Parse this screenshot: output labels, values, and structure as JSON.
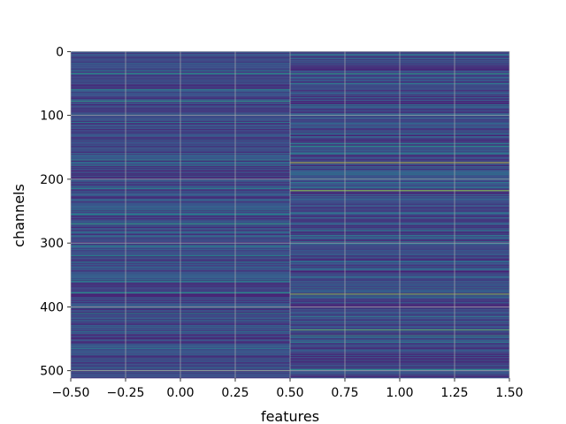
{
  "chart_data": {
    "type": "heatmap",
    "title": "",
    "xlabel": "features",
    "ylabel": "channels",
    "xlim": [
      -0.5,
      1.5
    ],
    "ylim": [
      512,
      0
    ],
    "x_ticks": [
      "−0.50",
      "−0.25",
      "0.00",
      "0.25",
      "0.50",
      "0.75",
      "1.00",
      "1.25",
      "1.50"
    ],
    "x_tick_values": [
      -0.5,
      -0.25,
      0.0,
      0.25,
      0.5,
      0.75,
      1.0,
      1.25,
      1.5
    ],
    "y_ticks": [
      "0",
      "100",
      "200",
      "300",
      "400",
      "500"
    ],
    "y_tick_values": [
      0,
      100,
      200,
      300,
      400,
      500
    ],
    "grid": true,
    "colormap": "viridis",
    "columns": [
      0,
      1
    ],
    "rows": 512,
    "value_range": [
      0,
      1
    ],
    "highlighted_rows": {
      "column_0": [
        {
          "row": 35,
          "value": 0.55
        },
        {
          "row": 60,
          "value": 0.5
        },
        {
          "row": 78,
          "value": 0.6
        },
        {
          "row": 170,
          "value": 0.5
        },
        {
          "row": 215,
          "value": 0.5
        },
        {
          "row": 250,
          "value": 0.45
        },
        {
          "row": 270,
          "value": 0.6
        },
        {
          "row": 290,
          "value": 0.45
        },
        {
          "row": 320,
          "value": 0.5
        },
        {
          "row": 360,
          "value": 0.45
        },
        {
          "row": 378,
          "value": 0.55
        },
        {
          "row": 410,
          "value": 0.5
        },
        {
          "row": 500,
          "value": 0.7
        }
      ],
      "column_1": [
        {
          "row": 5,
          "value": 0.45
        },
        {
          "row": 35,
          "value": 0.6
        },
        {
          "row": 148,
          "value": 0.55
        },
        {
          "row": 160,
          "value": 0.5
        },
        {
          "row": 174,
          "value": 0.95
        },
        {
          "row": 205,
          "value": 0.45
        },
        {
          "row": 218,
          "value": 0.9
        },
        {
          "row": 280,
          "value": 0.45
        },
        {
          "row": 380,
          "value": 0.85
        },
        {
          "row": 415,
          "value": 0.45
        },
        {
          "row": 436,
          "value": 0.75
        },
        {
          "row": 445,
          "value": 0.6
        },
        {
          "row": 455,
          "value": 0.5
        },
        {
          "row": 498,
          "value": 0.55
        }
      ]
    }
  }
}
